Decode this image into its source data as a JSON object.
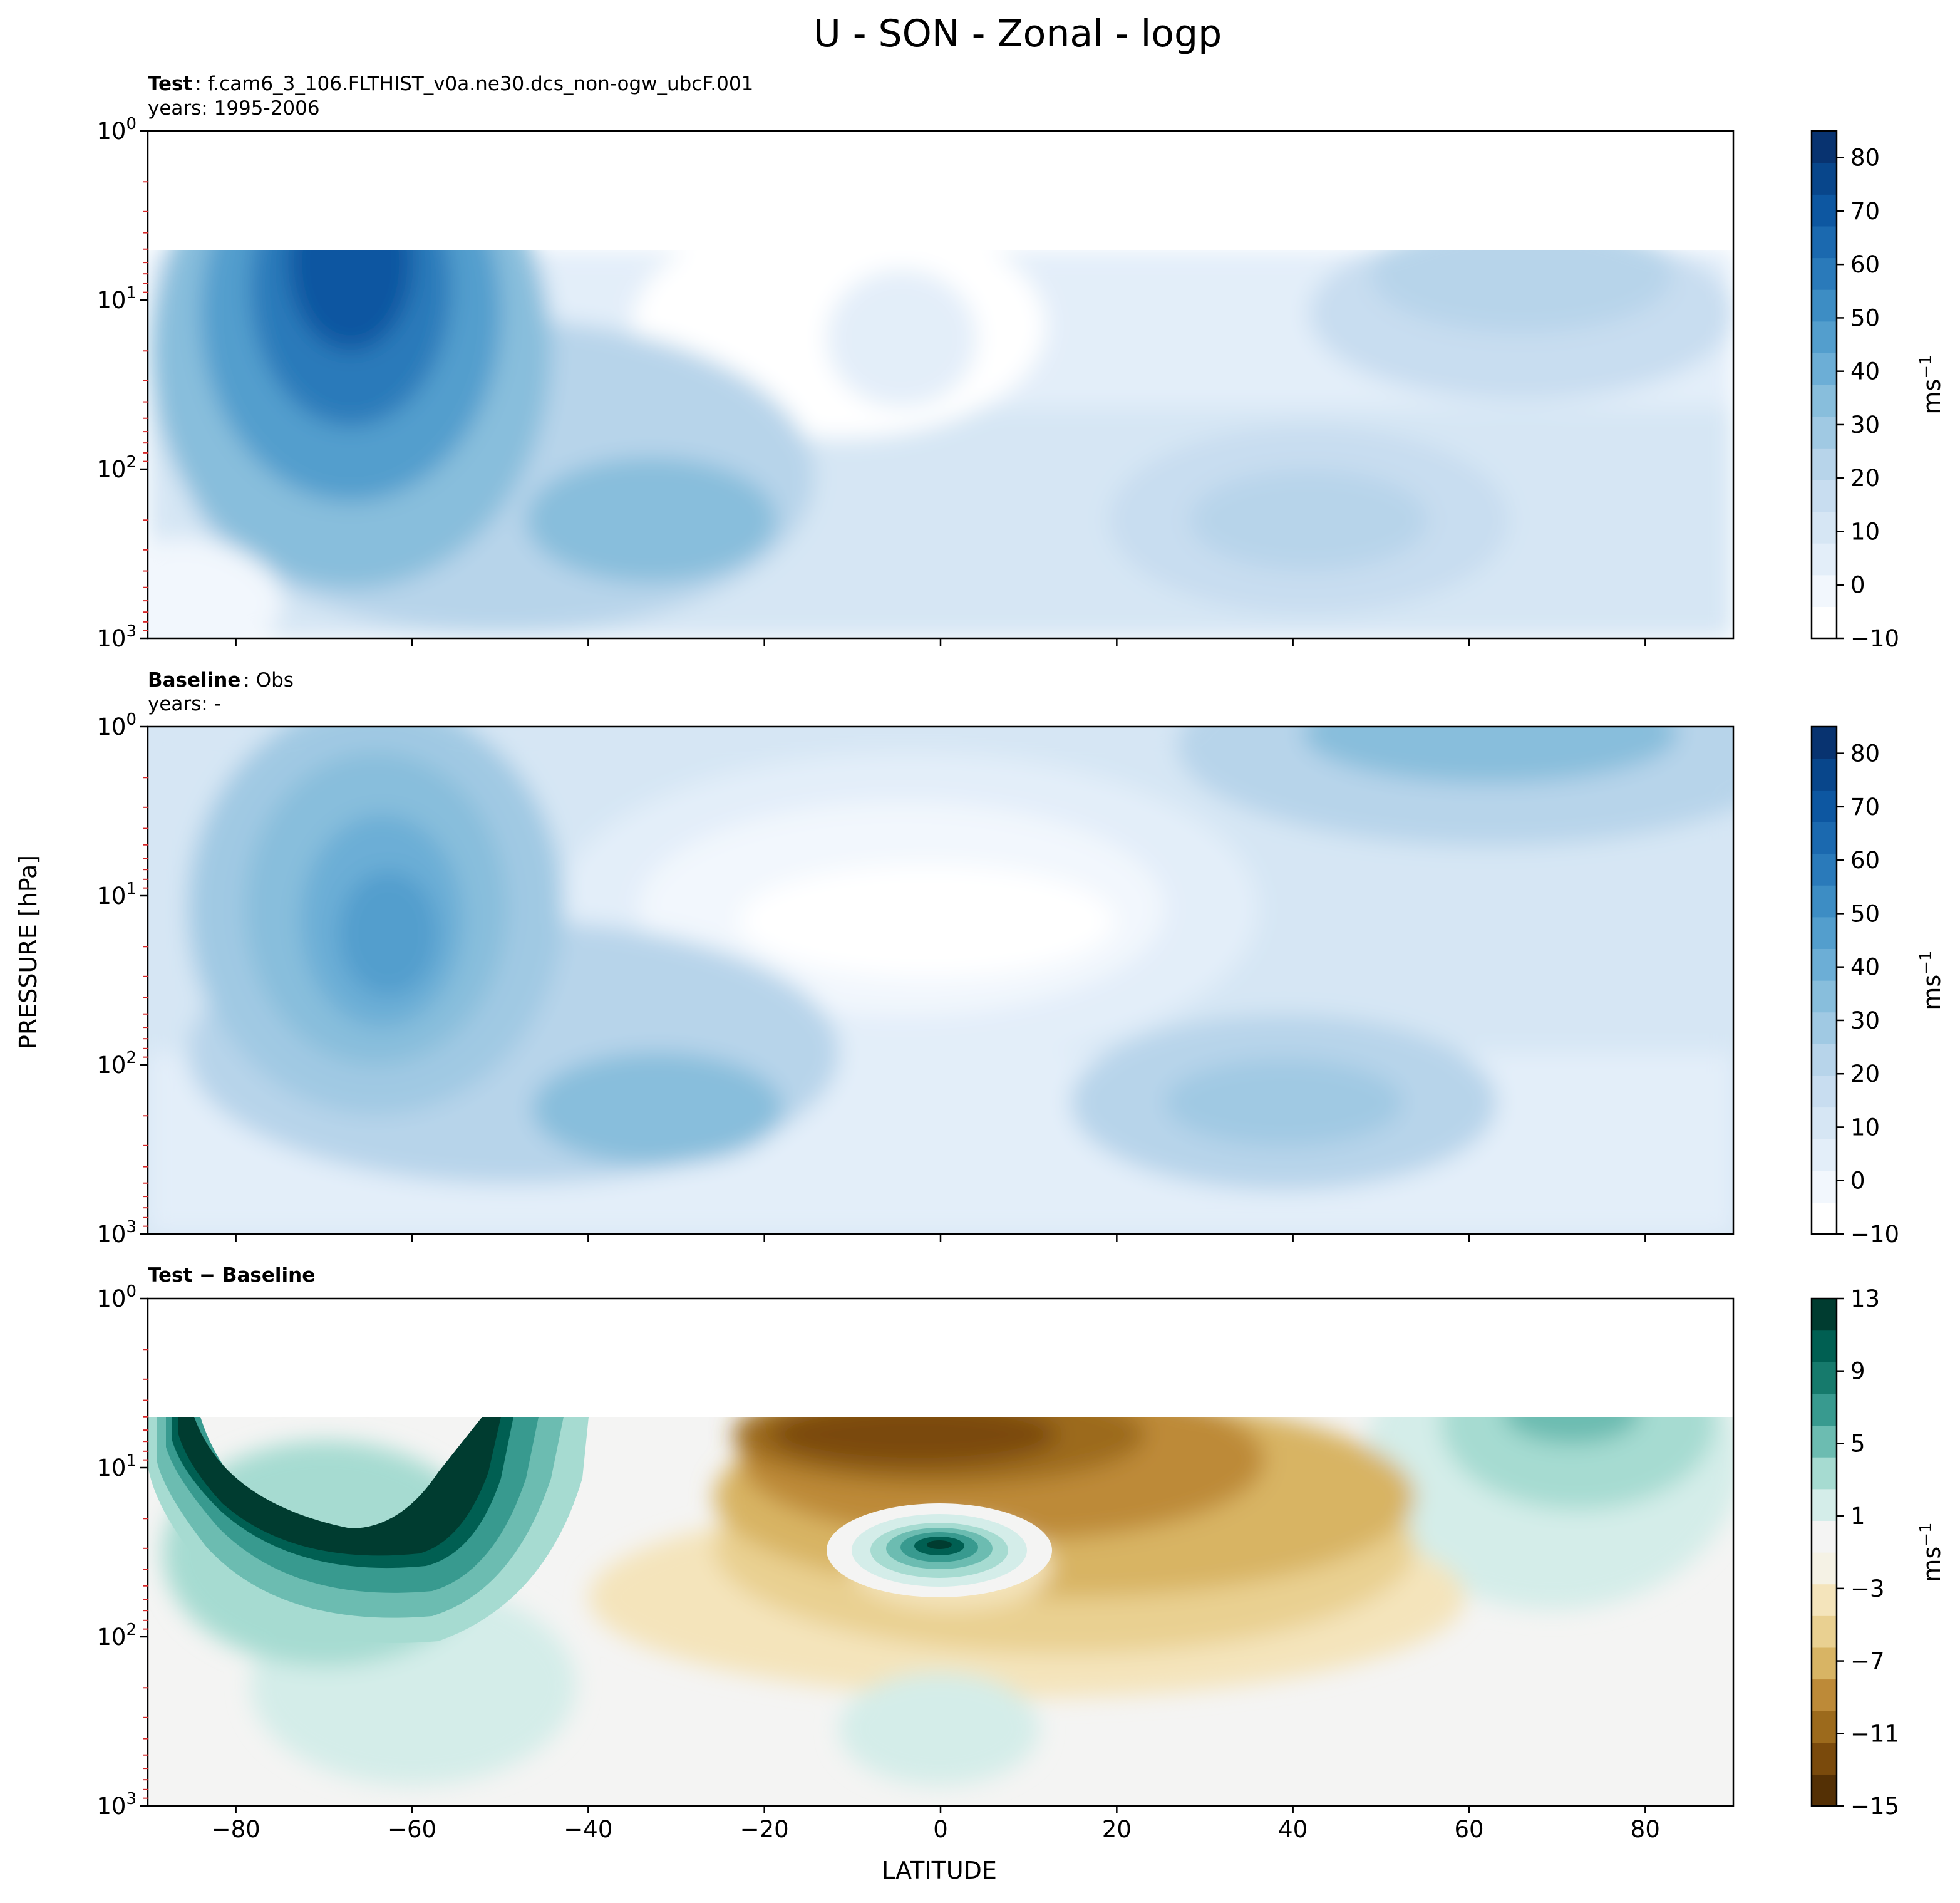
{
  "figure": {
    "title": "U - SON - Zonal - logp",
    "xlabel": "LATITUDE",
    "ylabel": "PRESSURE [hPa]"
  },
  "panels": [
    {
      "header_bold": "Test",
      "header_text": "f.cam6_3_106.FLTHIST_v0a.ne30.dcs_non-ogw_ubcF.001",
      "years_text": "years: 1995-2006",
      "colorbar_unit": "ms",
      "colorbar_unit_sup": "−1",
      "colorbar_ticks": [
        "80",
        "70",
        "60",
        "50",
        "40",
        "30",
        "20",
        "10",
        "0",
        "−10"
      ]
    },
    {
      "header_bold": "Baseline",
      "header_text": "Obs",
      "years_text": "years: -",
      "colorbar_unit": "ms",
      "colorbar_unit_sup": "−1",
      "colorbar_ticks": [
        "80",
        "70",
        "60",
        "50",
        "40",
        "30",
        "20",
        "10",
        "0",
        "−10"
      ]
    },
    {
      "header_bold": "Test − Baseline",
      "header_text": "",
      "years_text": "",
      "colorbar_unit": "ms",
      "colorbar_unit_sup": "−1",
      "colorbar_ticks": [
        "13",
        "9",
        "5",
        "1",
        "−3",
        "−7",
        "−11",
        "−15"
      ]
    }
  ],
  "colors": {
    "blues": [
      "#ffffff",
      "#f2f7fd",
      "#e3eef9",
      "#d6e6f4",
      "#c8ddf0",
      "#b7d4ea",
      "#a0c9e3",
      "#88bedc",
      "#6caed6",
      "#539ecd",
      "#3d8dc4",
      "#2a7aba",
      "#1b69af",
      "#0d57a1",
      "#08468b",
      "#083370"
    ],
    "diverging": [
      "#543005",
      "#7a4a0c",
      "#9c6a1c",
      "#bd8a38",
      "#d8b464",
      "#e9d091",
      "#f4e4bb",
      "#f5f2e5",
      "#f4f4f3",
      "#d4ede9",
      "#a6dbd1",
      "#6cbcb1",
      "#389a8f",
      "#167a6c",
      "#005f52",
      "#003c30"
    ]
  },
  "chart_data": [
    {
      "type": "contour",
      "panel": "Test",
      "x": {
        "label": "LATITUDE",
        "range": [
          -90,
          90
        ],
        "ticks": [
          -80,
          -60,
          -40,
          -20,
          0,
          20,
          40,
          60,
          80
        ]
      },
      "y": {
        "label": "PRESSURE [hPa]",
        "scale": "log",
        "range": [
          1000,
          1
        ],
        "inverted": true,
        "tick_labels": [
          "10^0",
          "10^1",
          "10^2",
          "10^3"
        ]
      },
      "data_top_hPa": 5,
      "levels": [
        -10,
        0,
        10,
        20,
        30,
        40,
        50,
        60,
        70,
        80
      ],
      "features": [
        {
          "lat": -64,
          "p_hPa": 8,
          "value": 75
        },
        {
          "lat": -30,
          "p_hPa": 200,
          "value": 35
        },
        {
          "lat": 45,
          "p_hPa": 200,
          "value": 30
        },
        {
          "lat": 67,
          "p_hPa": 5,
          "value": 30
        },
        {
          "lat": 0,
          "p_hPa": 30,
          "value": 10
        },
        {
          "lat": -5,
          "p_hPa": 20,
          "value": 0
        }
      ]
    },
    {
      "type": "contour",
      "panel": "Baseline",
      "x": {
        "label": "LATITUDE",
        "range": [
          -90,
          90
        ],
        "ticks": [
          -80,
          -60,
          -40,
          -20,
          0,
          20,
          40,
          60,
          80
        ]
      },
      "y": {
        "label": "PRESSURE [hPa]",
        "scale": "log",
        "range": [
          1000,
          1
        ],
        "inverted": true,
        "tick_labels": [
          "10^0",
          "10^1",
          "10^2",
          "10^3"
        ]
      },
      "data_top_hPa": 1,
      "levels": [
        -10,
        0,
        10,
        20,
        30,
        40,
        50,
        60,
        70,
        80
      ],
      "features": [
        {
          "lat": -62,
          "p_hPa": 20,
          "value": 45
        },
        {
          "lat": -30,
          "p_hPa": 200,
          "value": 35
        },
        {
          "lat": 40,
          "p_hPa": 200,
          "value": 30
        },
        {
          "lat": 62,
          "p_hPa": 1,
          "value": 40
        },
        {
          "lat": 5,
          "p_hPa": 20,
          "value": 0
        }
      ]
    },
    {
      "type": "contour",
      "panel": "Test − Baseline",
      "x": {
        "label": "LATITUDE",
        "range": [
          -90,
          90
        ],
        "ticks": [
          -80,
          -60,
          -40,
          -20,
          0,
          20,
          40,
          60,
          80
        ]
      },
      "y": {
        "label": "PRESSURE [hPa]",
        "scale": "log",
        "range": [
          1000,
          1
        ],
        "inverted": true,
        "tick_labels": [
          "10^0",
          "10^1",
          "10^2",
          "10^3"
        ]
      },
      "data_top_hPa": 5,
      "levels": [
        -15,
        -13,
        -11,
        -9,
        -7,
        -5,
        -3,
        -1,
        1,
        3,
        5,
        7,
        9,
        11,
        13
      ],
      "features": [
        {
          "lat": -65,
          "p_hPa": 20,
          "value": 13
        },
        {
          "lat": -50,
          "p_hPa": 5,
          "value": 13
        },
        {
          "lat": 0,
          "p_hPa": 30,
          "value": 13
        },
        {
          "lat": -5,
          "p_hPa": 10,
          "value": -15
        },
        {
          "lat": 20,
          "p_hPa": 5,
          "value": -13
        },
        {
          "lat": 30,
          "p_hPa": 60,
          "value": -5
        },
        {
          "lat": 70,
          "p_hPa": 7,
          "value": 7
        },
        {
          "lat": 0,
          "p_hPa": 300,
          "value": 2
        }
      ]
    }
  ]
}
